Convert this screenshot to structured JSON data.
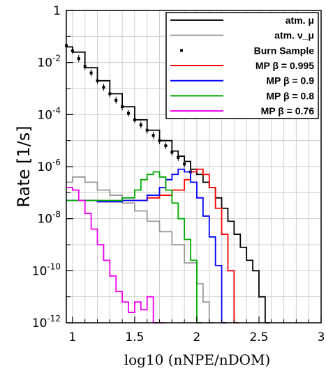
{
  "chart_data": {
    "type": "line",
    "title": "",
    "xlabel": "log10 (nNPE/nDOM)",
    "ylabel": "Rate [1/s]",
    "xlim": [
      0.95,
      3.0
    ],
    "ylim_log10": [
      -12,
      0
    ],
    "y_scale": "log",
    "grid": true,
    "legend_position": "top-right",
    "x_ticks": [
      {
        "value": 1,
        "label": "1"
      },
      {
        "value": 1.5,
        "label": "1.5"
      },
      {
        "value": 2,
        "label": "2"
      },
      {
        "value": 2.5,
        "label": "2.5"
      },
      {
        "value": 3,
        "label": "3"
      }
    ],
    "y_ticks": [
      {
        "exp": 0,
        "base": "1",
        "sup": ""
      },
      {
        "exp": -2,
        "base": "10",
        "sup": "-2"
      },
      {
        "exp": -4,
        "base": "10",
        "sup": "-4"
      },
      {
        "exp": -6,
        "base": "10",
        "sup": "-6"
      },
      {
        "exp": -8,
        "base": "10",
        "sup": "-8"
      },
      {
        "exp": -10,
        "base": "10",
        "sup": "-10"
      },
      {
        "exp": -12,
        "base": "10",
        "sup": "-12"
      }
    ],
    "series": [
      {
        "name": "atm. μ",
        "color": "#000000",
        "style": "step",
        "x": [
          0.95,
          1.0,
          1.1,
          1.2,
          1.3,
          1.4,
          1.5,
          1.6,
          1.7,
          1.8,
          1.85,
          1.9,
          1.95,
          2.0,
          2.05,
          2.1,
          2.15,
          2.2,
          2.25,
          2.3,
          2.35,
          2.4,
          2.45,
          2.5,
          2.55
        ],
        "log10_y": [
          -1.4,
          -1.6,
          -2.2,
          -2.7,
          -3.2,
          -3.7,
          -4.2,
          -4.6,
          -5.0,
          -5.4,
          -5.6,
          -5.8,
          -6.1,
          -6.3,
          -6.6,
          -6.8,
          -7.2,
          -7.6,
          -8.1,
          -8.6,
          -9.1,
          -9.6,
          -10.0,
          -11.0,
          -12.0
        ]
      },
      {
        "name": "atm. ν_μ",
        "color": "#999999",
        "style": "step",
        "x": [
          0.95,
          1.0,
          1.1,
          1.2,
          1.3,
          1.4,
          1.5,
          1.6,
          1.7,
          1.8,
          1.9,
          2.0,
          2.05,
          2.1
        ],
        "log10_y": [
          -6.6,
          -6.4,
          -6.6,
          -6.9,
          -7.1,
          -7.4,
          -7.7,
          -8.1,
          -8.5,
          -9.0,
          -9.7,
          -10.5,
          -11.2,
          -12.0
        ]
      },
      {
        "name": "Burn Sample",
        "color": "#000000",
        "style": "points",
        "x": [
          0.95,
          1.0,
          1.05,
          1.1,
          1.15,
          1.2,
          1.25,
          1.3,
          1.35,
          1.4,
          1.45,
          1.5,
          1.55,
          1.6,
          1.65,
          1.7,
          1.75,
          1.8,
          1.85,
          1.9,
          1.95
        ],
        "log10_y": [
          -1.35,
          -1.55,
          -1.85,
          -2.15,
          -2.4,
          -2.7,
          -2.95,
          -3.2,
          -3.45,
          -3.7,
          -3.95,
          -4.2,
          -4.4,
          -4.6,
          -4.8,
          -5.0,
          -5.2,
          -5.45,
          -5.65,
          -5.9,
          -6.2
        ]
      },
      {
        "name": "MP β = 0.995",
        "color": "#ff0000",
        "style": "step",
        "x": [
          0.95,
          1.2,
          1.4,
          1.6,
          1.7,
          1.8,
          1.9,
          1.95,
          2.0,
          2.05,
          2.1,
          2.15,
          2.2,
          2.25,
          2.3
        ],
        "log10_y": [
          -7.3,
          -7.35,
          -7.3,
          -7.2,
          -7.1,
          -6.9,
          -6.5,
          -6.2,
          -6.1,
          -6.3,
          -6.8,
          -7.6,
          -8.6,
          -10.0,
          -12.0
        ]
      },
      {
        "name": "MP β = 0.9",
        "color": "#0000ff",
        "style": "step",
        "x": [
          0.95,
          1.2,
          1.4,
          1.6,
          1.7,
          1.75,
          1.8,
          1.85,
          1.9,
          1.95,
          2.0,
          2.05,
          2.1,
          2.15,
          2.2
        ],
        "log10_y": [
          -7.3,
          -7.35,
          -7.3,
          -7.1,
          -6.8,
          -6.5,
          -6.3,
          -6.1,
          -6.2,
          -6.6,
          -7.2,
          -7.9,
          -8.7,
          -9.8,
          -12.0
        ]
      },
      {
        "name": "MP β = 0.8",
        "color": "#00aa00",
        "style": "step",
        "x": [
          0.95,
          1.2,
          1.4,
          1.5,
          1.55,
          1.6,
          1.65,
          1.7,
          1.75,
          1.8,
          1.85,
          1.9,
          1.95,
          2.0
        ],
        "log10_y": [
          -7.3,
          -7.3,
          -7.2,
          -6.9,
          -6.5,
          -6.3,
          -6.2,
          -6.4,
          -6.9,
          -7.4,
          -8.0,
          -8.8,
          -9.6,
          -12.0
        ]
      },
      {
        "name": "MP β = 0.76",
        "color": "#ee00ee",
        "style": "step",
        "x": [
          0.95,
          1.0,
          1.05,
          1.1,
          1.15,
          1.2,
          1.25,
          1.3,
          1.35,
          1.4,
          1.45,
          1.5,
          1.55,
          1.6,
          1.65,
          1.7
        ],
        "log10_y": [
          -6.8,
          -6.9,
          -7.3,
          -7.8,
          -8.4,
          -9.0,
          -9.6,
          -10.2,
          -10.8,
          -11.2,
          -11.6,
          -11.2,
          -11.5,
          -11.0,
          -12.0,
          -12.0
        ]
      }
    ],
    "legend": [
      {
        "label": "atm. μ",
        "color": "#000000",
        "kind": "line"
      },
      {
        "label": "atm. ν_μ",
        "color": "#999999",
        "kind": "line"
      },
      {
        "label": "Burn Sample",
        "color": "#000000",
        "kind": "point"
      },
      {
        "label": "MP β = 0.995",
        "color": "#ff0000",
        "kind": "line"
      },
      {
        "label": "MP β = 0.9",
        "color": "#0000ff",
        "kind": "line"
      },
      {
        "label": "MP β = 0.8",
        "color": "#00aa00",
        "kind": "line"
      },
      {
        "label": "MP β = 0.76",
        "color": "#ee00ee",
        "kind": "line"
      }
    ]
  }
}
